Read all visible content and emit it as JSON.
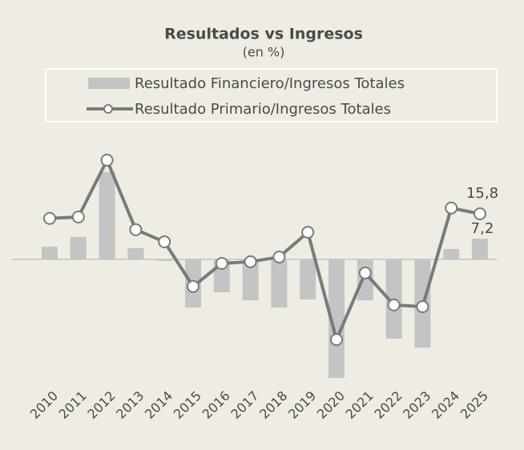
{
  "chart_data": {
    "type": "bar_line",
    "title": "Resultados vs Ingresos",
    "subtitle": "(en %)",
    "categories": [
      "2010",
      "2011",
      "2012",
      "2013",
      "2014",
      "2015",
      "2016",
      "2017",
      "2018",
      "2019",
      "2020",
      "2021",
      "2022",
      "2023",
      "2024",
      "2025"
    ],
    "series": [
      {
        "name": "Resultado Financiero/Ingresos Totales",
        "type": "bar",
        "color": "#c4c4c4",
        "values": [
          4.4,
          7.8,
          30.3,
          3.9,
          -0.5,
          -16.7,
          -11.4,
          -14.2,
          -16.7,
          -13.9,
          -41.1,
          -14.2,
          -27.5,
          -30.6,
          3.6,
          7.2
        ],
        "value_labels": [
          null,
          null,
          null,
          null,
          null,
          null,
          null,
          null,
          null,
          null,
          null,
          null,
          null,
          null,
          null,
          "7,2"
        ]
      },
      {
        "name": "Resultado Primario/Ingresos Totales",
        "type": "line",
        "color": "#7a7a7a",
        "values": [
          14.2,
          14.7,
          34.4,
          10.3,
          6.1,
          -9.4,
          -1.4,
          -0.8,
          0.8,
          9.4,
          -27.8,
          -4.7,
          -15.8,
          -16.4,
          17.8,
          15.8
        ],
        "value_labels": [
          null,
          null,
          null,
          null,
          null,
          null,
          null,
          null,
          null,
          null,
          null,
          null,
          null,
          null,
          null,
          "15,8"
        ]
      }
    ]
  }
}
